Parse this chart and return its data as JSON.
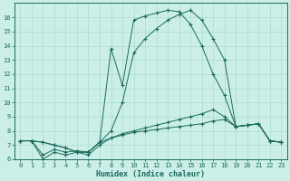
{
  "xlabel": "Humidex (Indice chaleur)",
  "xlim": [
    -0.5,
    23.5
  ],
  "ylim": [
    6,
    17
  ],
  "yticks": [
    6,
    7,
    8,
    9,
    10,
    11,
    12,
    13,
    14,
    15,
    16
  ],
  "xticks": [
    0,
    1,
    2,
    3,
    4,
    5,
    6,
    7,
    8,
    9,
    10,
    11,
    12,
    13,
    14,
    15,
    16,
    17,
    18,
    19,
    20,
    21,
    22,
    23
  ],
  "bg_color": "#cceee8",
  "grid_color": "#aaddcc",
  "line_color": "#1a6b5a",
  "lines": [
    [
      7.3,
      7.3,
      6.0,
      6.5,
      6.3,
      6.5,
      6.5,
      7.2,
      7.5,
      7.7,
      7.9,
      8.0,
      8.1,
      8.2,
      8.3,
      8.4,
      8.5,
      8.7,
      8.8,
      8.3,
      8.4,
      8.5,
      7.3,
      7.2
    ],
    [
      7.3,
      7.3,
      7.2,
      7.0,
      6.8,
      6.5,
      6.3,
      7.0,
      7.5,
      7.8,
      8.0,
      8.2,
      8.4,
      8.6,
      8.8,
      9.0,
      9.2,
      9.5,
      9.0,
      8.3,
      8.4,
      8.5,
      7.3,
      7.2
    ],
    [
      7.3,
      7.3,
      6.3,
      6.7,
      6.5,
      6.6,
      6.5,
      7.2,
      8.0,
      10.0,
      13.5,
      14.5,
      15.2,
      15.8,
      16.2,
      16.5,
      15.8,
      14.5,
      13.0,
      8.3,
      8.4,
      8.5,
      7.3,
      7.2
    ],
    [
      7.3,
      7.3,
      7.2,
      7.0,
      6.8,
      6.5,
      6.5,
      7.2,
      13.8,
      11.2,
      15.8,
      16.1,
      16.3,
      16.5,
      16.4,
      15.5,
      14.0,
      12.0,
      10.5,
      8.3,
      8.4,
      8.5,
      7.3,
      7.2
    ]
  ]
}
